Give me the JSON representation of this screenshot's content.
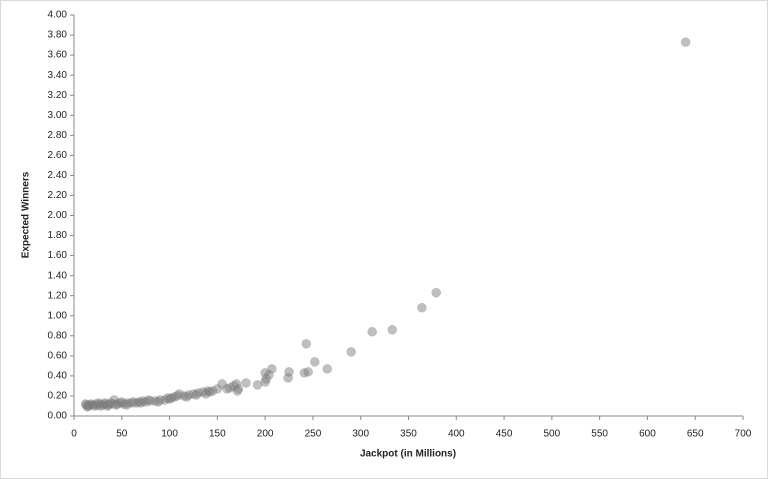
{
  "chart_data": {
    "type": "scatter",
    "x_label": "Jackpot (in Millions)",
    "y_label": "Expected Winners",
    "color": "#7f7f7f",
    "xlim": [
      0,
      700
    ],
    "ylim": [
      0,
      4
    ],
    "xticks": [
      0,
      50,
      100,
      150,
      200,
      250,
      300,
      350,
      400,
      450,
      500,
      550,
      600,
      650,
      700
    ],
    "yticks": [
      {
        "value": 0,
        "label": "0.00"
      },
      {
        "value": 0.2,
        "label": "0.20"
      },
      {
        "value": 0.4,
        "label": "0.40"
      },
      {
        "value": 0.6,
        "label": "0.60"
      },
      {
        "value": 0.8,
        "label": "0.80"
      },
      {
        "value": 1,
        "label": "1.00"
      },
      {
        "value": 1.2,
        "label": "1.20"
      },
      {
        "value": 1.4,
        "label": "1.40"
      },
      {
        "value": 1.6,
        "label": "1.60"
      },
      {
        "value": 1.8,
        "label": "1.80"
      },
      {
        "value": 2,
        "label": "2.00"
      },
      {
        "value": 2.2,
        "label": "2.20"
      },
      {
        "value": 2.4,
        "label": "2.40"
      },
      {
        "value": 2.6,
        "label": "2.60"
      },
      {
        "value": 2.8,
        "label": "2.80"
      },
      {
        "value": 3,
        "label": "3.00"
      },
      {
        "value": 3.2,
        "label": "3.20"
      },
      {
        "value": 3.4,
        "label": "3.40"
      },
      {
        "value": 3.6,
        "label": "3.60"
      },
      {
        "value": 3.8,
        "label": "3.80"
      },
      {
        "value": 4,
        "label": "4.00"
      }
    ],
    "x": [
      640,
      379,
      364,
      333,
      312,
      290,
      265,
      252,
      243,
      245,
      241,
      224,
      225,
      207,
      204,
      200,
      200,
      201,
      192,
      180,
      172,
      170,
      167,
      163,
      155,
      150,
      145,
      142,
      140,
      135,
      130,
      125,
      120,
      115,
      110,
      108,
      105,
      102,
      100,
      95,
      90,
      85,
      80,
      75,
      72,
      68,
      65,
      60,
      56,
      52,
      48,
      45,
      42,
      40,
      36,
      33,
      30,
      27,
      24,
      20,
      18,
      15,
      13,
      12,
      14,
      16,
      22,
      25,
      28,
      32,
      35,
      38,
      44,
      50,
      55,
      62,
      70,
      78,
      88,
      98,
      118,
      128,
      138,
      160,
      171
    ],
    "y": [
      3.73,
      1.23,
      1.08,
      0.86,
      0.84,
      0.64,
      0.47,
      0.54,
      0.72,
      0.44,
      0.43,
      0.38,
      0.44,
      0.47,
      0.41,
      0.43,
      0.34,
      0.37,
      0.31,
      0.33,
      0.27,
      0.32,
      0.3,
      0.28,
      0.32,
      0.27,
      0.25,
      0.24,
      0.25,
      0.24,
      0.23,
      0.22,
      0.21,
      0.2,
      0.22,
      0.2,
      0.19,
      0.18,
      0.17,
      0.16,
      0.16,
      0.15,
      0.15,
      0.14,
      0.15,
      0.14,
      0.13,
      0.13,
      0.13,
      0.12,
      0.13,
      0.12,
      0.16,
      0.12,
      0.11,
      0.12,
      0.11,
      0.12,
      0.11,
      0.11,
      0.12,
      0.1,
      0.11,
      0.12,
      0.09,
      0.11,
      0.1,
      0.13,
      0.1,
      0.13,
      0.1,
      0.13,
      0.11,
      0.14,
      0.11,
      0.14,
      0.13,
      0.16,
      0.14,
      0.18,
      0.19,
      0.21,
      0.22,
      0.27,
      0.25
    ]
  }
}
